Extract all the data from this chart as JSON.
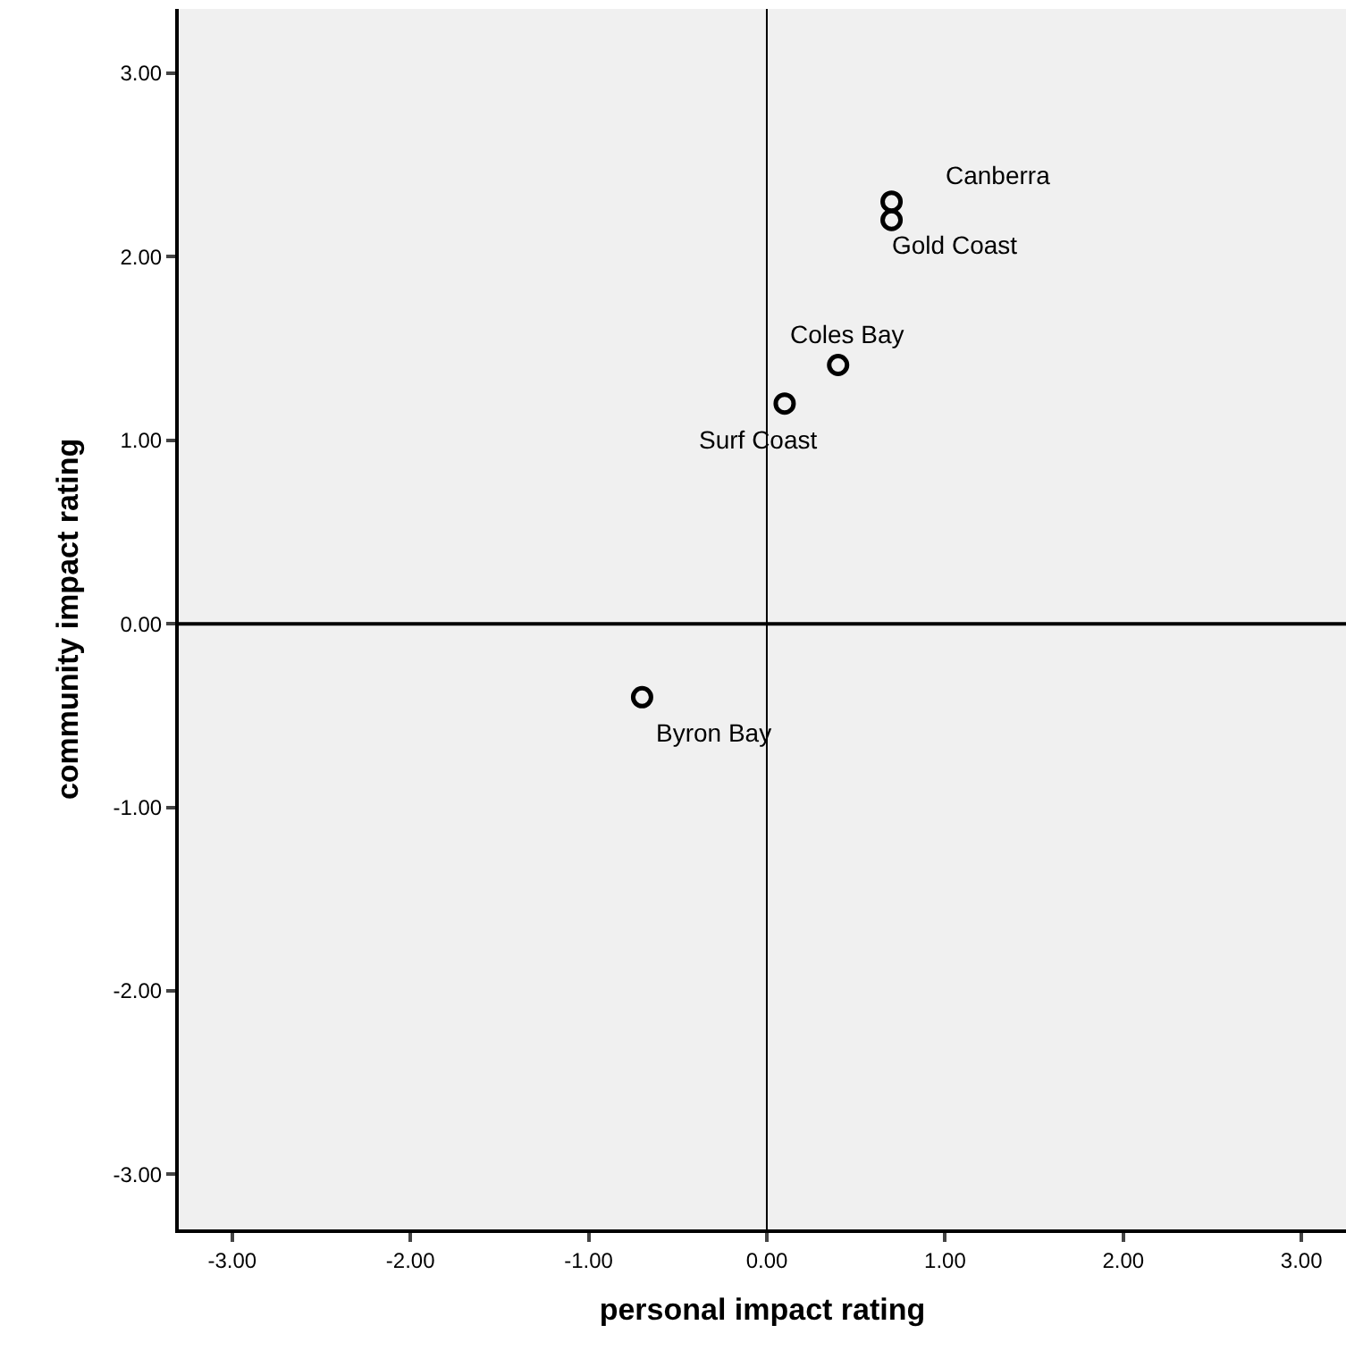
{
  "chart_data": {
    "type": "scatter",
    "xlabel": "personal impact rating",
    "ylabel": "community impact rating",
    "x": [
      0.7,
      0.7,
      0.4,
      0.1,
      -0.7
    ],
    "series": [
      {
        "color": "#000000",
        "values": [
          2.3,
          2.2,
          1.41,
          1.2,
          -0.4
        ]
      }
    ],
    "annotations": [
      {
        "text": "Canberra",
        "x": 0.7,
        "y": 2.3
      },
      {
        "text": "Gold Coast",
        "x": 0.7,
        "y": 2.2
      },
      {
        "text": "Coles Bay",
        "x": 0.4,
        "y": 1.41
      },
      {
        "text": "Surf Coast",
        "x": 0.1,
        "y": 1.2
      },
      {
        "text": "Byron Bay",
        "x": -0.7,
        "y": -0.4
      }
    ],
    "xlim": [
      -3.3,
      3.25
    ],
    "ylim": [
      -3.3,
      3.35
    ],
    "xticks": [
      {
        "value": -3,
        "label": "-3.00"
      },
      {
        "value": -2,
        "label": "-2.00"
      },
      {
        "value": -1,
        "label": "-1.00"
      },
      {
        "value": 0,
        "label": "0.00"
      },
      {
        "value": 1,
        "label": "1.00"
      },
      {
        "value": 2,
        "label": "2.00"
      },
      {
        "value": 3,
        "label": "3.00"
      }
    ],
    "yticks": [
      {
        "value": -3,
        "label": "-3.00"
      },
      {
        "value": -2,
        "label": "-2.00"
      },
      {
        "value": -1,
        "label": "-1.00"
      },
      {
        "value": 0,
        "label": "0.00"
      },
      {
        "value": 1,
        "label": "1.00"
      },
      {
        "value": 2,
        "label": "2.00"
      },
      {
        "value": 3,
        "label": "3.00"
      }
    ],
    "ref_lines": [
      {
        "axis": "x",
        "value": 0,
        "color": "#000000"
      },
      {
        "axis": "y",
        "value": 0,
        "color": "#000000"
      }
    ],
    "grid": false,
    "marker": "circle"
  }
}
